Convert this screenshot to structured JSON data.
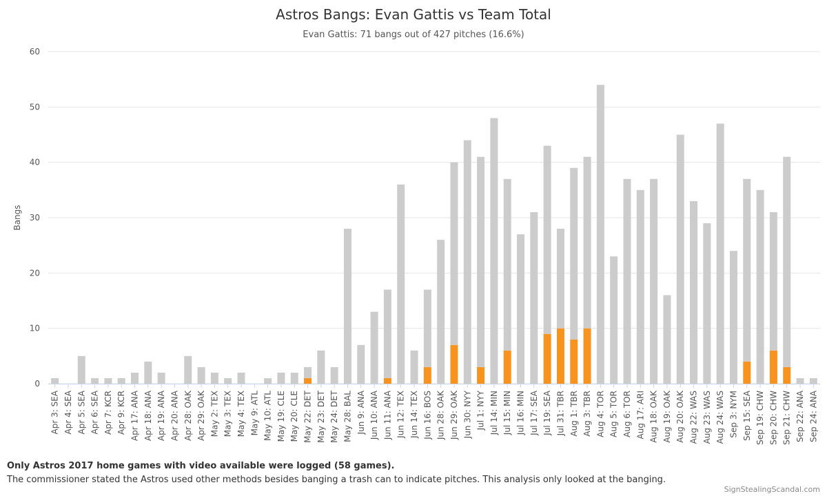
{
  "chart_data": {
    "type": "stacked_bar",
    "title": "Astros Bangs: Evan Gattis vs Team Total",
    "subtitle": "Evan Gattis: 71 bangs out of 427 pitches (16.6%)",
    "y_label": "Bangs",
    "categories": [
      "Apr 3: SEA",
      "Apr 4: SEA",
      "Apr 5: SEA",
      "Apr 6: SEA",
      "Apr 7: KCR",
      "Apr 9: KCR",
      "Apr 17: ANA",
      "Apr 18: ANA",
      "Apr 19: ANA",
      "Apr 20: ANA",
      "Apr 28: OAK",
      "Apr 29: OAK",
      "May 2: TEX",
      "May 3: TEX",
      "May 4: TEX",
      "May 9: ATL",
      "May 10: ATL",
      "May 19: CLE",
      "May 20: CLE",
      "May 22: DET",
      "May 23: DET",
      "May 24: DET",
      "May 28: BAL",
      "Jun 9: ANA",
      "Jun 10: ANA",
      "Jun 11: ANA",
      "Jun 12: TEX",
      "Jun 14: TEX",
      "Jun 16: BOS",
      "Jun 28: OAK",
      "Jun 29: OAK",
      "Jun 30: NYY",
      "Jul 1: NYY",
      "Jul 14: MIN",
      "Jul 15: MIN",
      "Jul 16: MIN",
      "Jul 17: SEA",
      "Jul 19: SEA",
      "Jul 31: TBR",
      "Aug 1: TBR",
      "Aug 3: TBR",
      "Aug 4: TOR",
      "Aug 5: TOR",
      "Aug 6: TOR",
      "Aug 17: ARI",
      "Aug 18: OAK",
      "Aug 19: OAK",
      "Aug 20: OAK",
      "Aug 22: WAS",
      "Aug 23: WAS",
      "Aug 24: WAS",
      "Sep 3: NYM",
      "Sep 15: SEA",
      "Sep 19: CHW",
      "Sep 20: CHW",
      "Sep 21: CHW",
      "Sep 22: ANA",
      "Sep 24: ANA"
    ],
    "series": [
      {
        "color": "#f7931e",
        "values": [
          0,
          0,
          0,
          0,
          0,
          0,
          0,
          0,
          0,
          0,
          0,
          0,
          0,
          0,
          0,
          0,
          0,
          0,
          0,
          1,
          0,
          0,
          0,
          0,
          0,
          1,
          0,
          0,
          3,
          0,
          7,
          0,
          3,
          0,
          6,
          0,
          0,
          9,
          10,
          8,
          10,
          0,
          0,
          0,
          0,
          0,
          0,
          0,
          0,
          0,
          0,
          0,
          4,
          0,
          6,
          3,
          0,
          0
        ]
      },
      {
        "color": "#cccccc",
        "values": [
          1,
          0,
          5,
          1,
          1,
          1,
          2,
          4,
          2,
          0,
          5,
          3,
          2,
          1,
          2,
          0,
          1,
          2,
          2,
          2,
          6,
          3,
          28,
          7,
          13,
          16,
          36,
          6,
          14,
          26,
          33,
          44,
          38,
          48,
          31,
          27,
          31,
          34,
          18,
          31,
          31,
          54,
          23,
          37,
          35,
          37,
          16,
          45,
          33,
          29,
          47,
          24,
          33,
          35,
          25,
          38,
          1,
          1
        ]
      }
    ],
    "ylim": [
      0,
      60
    ],
    "yticks": [
      0,
      10,
      20,
      30,
      40,
      50,
      60
    ],
    "grid": true,
    "notes": [
      "Only Astros 2017 home games with video available were logged (58 games).",
      "The commissioner stated the Astros used other methods besides banging a trash can to indicate pitches. This analysis only looked at the banging."
    ],
    "credit": "SignStealingScandal.com"
  }
}
